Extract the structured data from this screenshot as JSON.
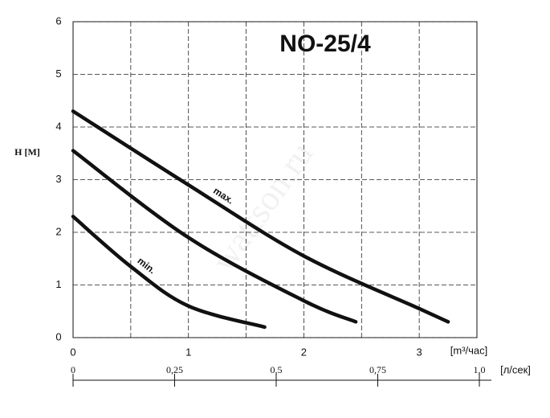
{
  "chart_data": {
    "type": "line",
    "title": "NO-25/4",
    "y_label": "H [M]",
    "x_label": "[m³/час]",
    "x2_label": "[л/сек]",
    "watermark": "wattson.ru",
    "xlim": [
      0,
      3.5
    ],
    "xticks": [
      0,
      1,
      2,
      3
    ],
    "xgrid": [
      0.5,
      1,
      1.5,
      2,
      2.5,
      3
    ],
    "ylim": [
      0,
      6
    ],
    "yticks": [
      0,
      1,
      2,
      3,
      4,
      5,
      6
    ],
    "grid": true,
    "x2lim": [
      0,
      1.0
    ],
    "x2ticks": [
      0,
      {
        "value": 0.25,
        "label": "0,25"
      },
      {
        "value": 0.5,
        "label": "0,5"
      },
      {
        "value": 0.75,
        "label": "0,75"
      },
      {
        "value": 1.0,
        "label": "1,0"
      }
    ],
    "series": [
      {
        "name": "max.",
        "color": "#111111",
        "x": [
          0,
          1,
          2,
          3,
          3.25
        ],
        "values": [
          4.3,
          2.9,
          1.55,
          0.55,
          0.3
        ]
      },
      {
        "color": "#111111",
        "x": [
          0,
          1,
          2,
          2.45
        ],
        "values": [
          3.55,
          1.9,
          0.7,
          0.3
        ]
      },
      {
        "name": "min.",
        "color": "#111111",
        "x": [
          0,
          0.5,
          1,
          1.66
        ],
        "values": [
          2.3,
          1.35,
          0.6,
          0.2
        ]
      }
    ]
  }
}
